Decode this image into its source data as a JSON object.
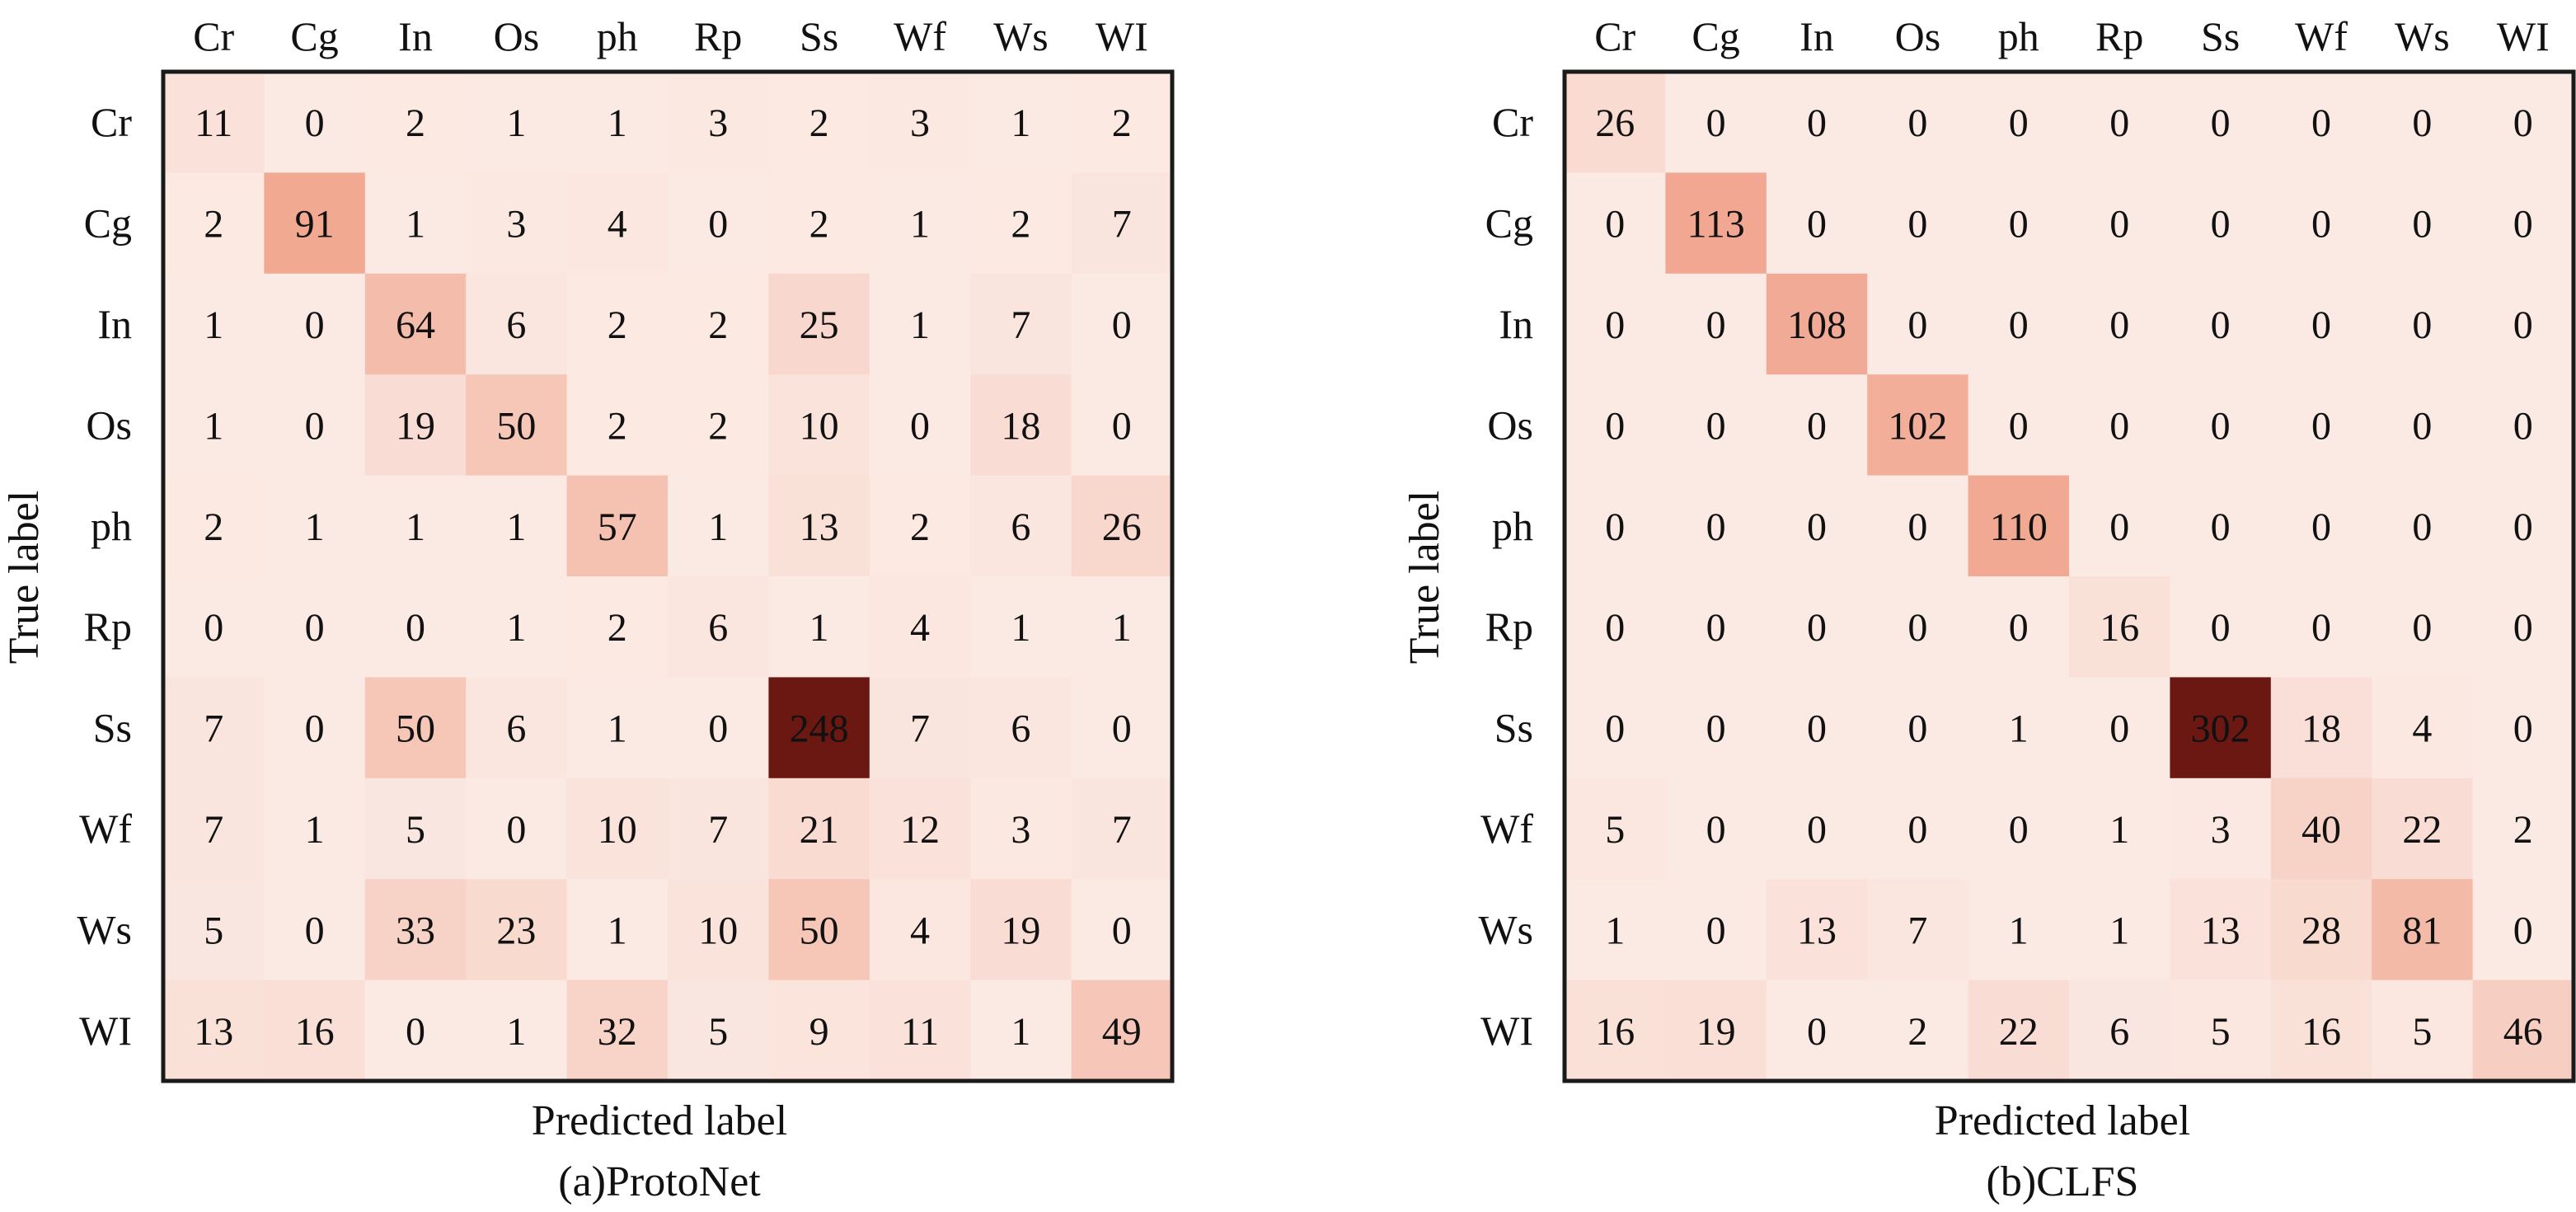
{
  "colors": {
    "low": "#fbeae4",
    "mid": "#ef9a80",
    "high": "#6b1712",
    "frame": "#1a1a1a"
  },
  "chart_data": [
    {
      "type": "heatmap",
      "caption": "(a)ProtoNet",
      "xlabel": "Predicted label",
      "ylabel": "True label",
      "x_categories": [
        "Cr",
        "Cg",
        "In",
        "Os",
        "ph",
        "Rp",
        "Ss",
        "Wf",
        "Ws",
        "WI"
      ],
      "y_categories": [
        "Cr",
        "Cg",
        "In",
        "Os",
        "ph",
        "Rp",
        "Ss",
        "Wf",
        "Ws",
        "WI"
      ],
      "matrix": [
        [
          11,
          0,
          2,
          1,
          1,
          3,
          2,
          3,
          1,
          2
        ],
        [
          2,
          91,
          1,
          3,
          4,
          0,
          2,
          1,
          2,
          7
        ],
        [
          1,
          0,
          64,
          6,
          2,
          2,
          25,
          1,
          7,
          0
        ],
        [
          1,
          0,
          19,
          50,
          2,
          2,
          10,
          0,
          18,
          0
        ],
        [
          2,
          1,
          1,
          1,
          57,
          1,
          13,
          2,
          6,
          26
        ],
        [
          0,
          0,
          0,
          1,
          2,
          6,
          1,
          4,
          1,
          1
        ],
        [
          7,
          0,
          50,
          6,
          1,
          0,
          248,
          7,
          6,
          0
        ],
        [
          7,
          1,
          5,
          0,
          10,
          7,
          21,
          12,
          3,
          7
        ],
        [
          5,
          0,
          33,
          23,
          1,
          10,
          50,
          4,
          19,
          0
        ],
        [
          13,
          16,
          0,
          1,
          32,
          5,
          9,
          11,
          1,
          49
        ]
      ]
    },
    {
      "type": "heatmap",
      "caption": "(b)CLFS",
      "xlabel": "Predicted label",
      "ylabel": "True label",
      "x_categories": [
        "Cr",
        "Cg",
        "In",
        "Os",
        "ph",
        "Rp",
        "Ss",
        "Wf",
        "Ws",
        "WI"
      ],
      "y_categories": [
        "Cr",
        "Cg",
        "In",
        "Os",
        "ph",
        "Rp",
        "Ss",
        "Wf",
        "Ws",
        "WI"
      ],
      "matrix": [
        [
          26,
          0,
          0,
          0,
          0,
          0,
          0,
          0,
          0,
          0
        ],
        [
          0,
          113,
          0,
          0,
          0,
          0,
          0,
          0,
          0,
          0
        ],
        [
          0,
          0,
          108,
          0,
          0,
          0,
          0,
          0,
          0,
          0
        ],
        [
          0,
          0,
          0,
          102,
          0,
          0,
          0,
          0,
          0,
          0
        ],
        [
          0,
          0,
          0,
          0,
          110,
          0,
          0,
          0,
          0,
          0
        ],
        [
          0,
          0,
          0,
          0,
          0,
          16,
          0,
          0,
          0,
          0
        ],
        [
          0,
          0,
          0,
          0,
          1,
          0,
          302,
          18,
          4,
          0
        ],
        [
          5,
          0,
          0,
          0,
          0,
          1,
          3,
          40,
          22,
          2
        ],
        [
          1,
          0,
          13,
          7,
          1,
          1,
          13,
          28,
          81,
          0
        ],
        [
          16,
          19,
          0,
          2,
          22,
          6,
          5,
          16,
          5,
          46
        ]
      ]
    }
  ]
}
